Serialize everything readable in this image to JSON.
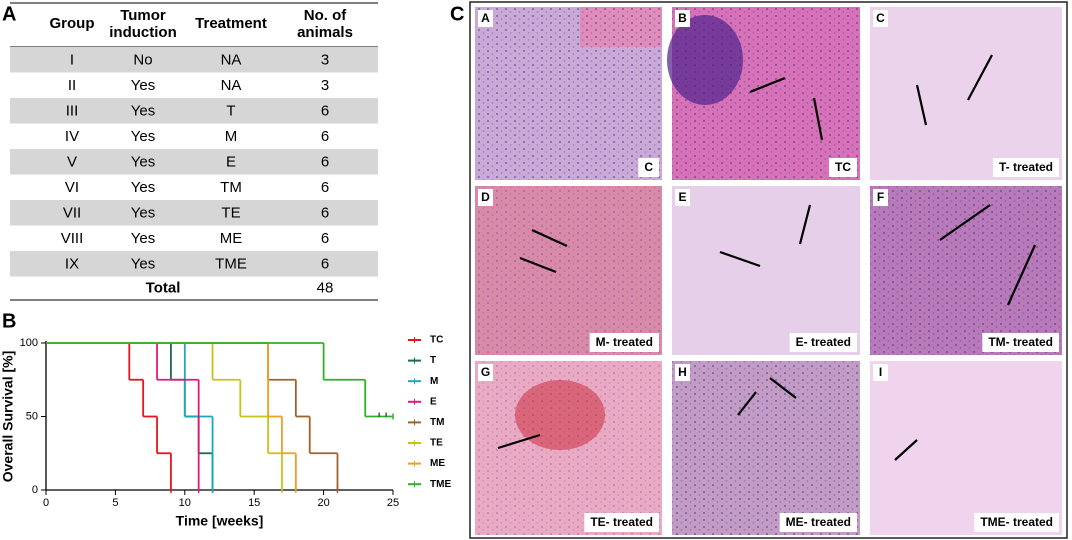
{
  "panel_labels": [
    "A",
    "B",
    "C"
  ],
  "table": {
    "header": [
      "Group",
      [
        "Tumor",
        "induction"
      ],
      "Treatment",
      [
        "No. of",
        "animals"
      ]
    ],
    "rows": [
      [
        "I",
        "No",
        "NA",
        3
      ],
      [
        "II",
        "Yes",
        "NA",
        3
      ],
      [
        "III",
        "Yes",
        "T",
        6
      ],
      [
        "IV",
        "Yes",
        "M",
        6
      ],
      [
        "V",
        "Yes",
        "E",
        6
      ],
      [
        "VI",
        "Yes",
        "TM",
        6
      ],
      [
        "VII",
        "Yes",
        "TE",
        6
      ],
      [
        "VIII",
        "Yes",
        "ME",
        6
      ],
      [
        "IX",
        "Yes",
        "TME",
        6
      ]
    ],
    "total": {
      "label": "Total",
      "value": 48
    }
  },
  "chart_data": {
    "type": "step",
    "xlabel": "Time [weeks]",
    "ylabel": "Overall Survival [%]",
    "xlim": [
      0,
      25
    ],
    "ylim": [
      0,
      100
    ],
    "xticks": [
      0,
      5,
      10,
      15,
      20,
      25
    ],
    "yticks": [
      0,
      50,
      100
    ],
    "series": [
      {
        "name": "TC",
        "color": "#e8141c",
        "x": [
          0,
          6,
          7,
          8,
          9
        ],
        "values": [
          100,
          75,
          50,
          25,
          0
        ]
      },
      {
        "name": "T",
        "color": "#1b6b50",
        "x": [
          0,
          9,
          10,
          11,
          12
        ],
        "values": [
          100,
          75,
          50,
          25,
          0
        ]
      },
      {
        "name": "M",
        "color": "#1aa7c0",
        "x": [
          0,
          10,
          12
        ],
        "values": [
          100,
          50,
          0
        ]
      },
      {
        "name": "E",
        "color": "#e0197a",
        "x": [
          0,
          8,
          11
        ],
        "values": [
          100,
          75,
          0
        ]
      },
      {
        "name": "TM",
        "color": "#a0622a",
        "x": [
          0,
          16,
          18,
          19,
          21
        ],
        "values": [
          100,
          75,
          50,
          25,
          0
        ]
      },
      {
        "name": "TE",
        "color": "#c9c21a",
        "x": [
          0,
          12,
          14,
          16,
          17
        ],
        "values": [
          100,
          75,
          50,
          25,
          0
        ]
      },
      {
        "name": "ME",
        "color": "#f0a020",
        "x": [
          0,
          16,
          17,
          18
        ],
        "values": [
          100,
          50,
          25,
          0
        ]
      },
      {
        "name": "TME",
        "color": "#2fb02a",
        "x": [
          0,
          20,
          23,
          25
        ],
        "values": [
          100,
          75,
          50,
          50
        ],
        "censored": [
          24,
          24.5
        ]
      }
    ]
  },
  "figure_c": {
    "panels": [
      {
        "letter": "A",
        "caption": "C"
      },
      {
        "letter": "B",
        "caption": "TC"
      },
      {
        "letter": "C",
        "caption": "T- treated"
      },
      {
        "letter": "D",
        "caption": "M- treated"
      },
      {
        "letter": "E",
        "caption": "E- treated"
      },
      {
        "letter": "F",
        "caption": "TM- treated"
      },
      {
        "letter": "G",
        "caption": "TE- treated"
      },
      {
        "letter": "H",
        "caption": "ME- treated"
      },
      {
        "letter": "I",
        "caption": "TME- treated"
      }
    ]
  }
}
